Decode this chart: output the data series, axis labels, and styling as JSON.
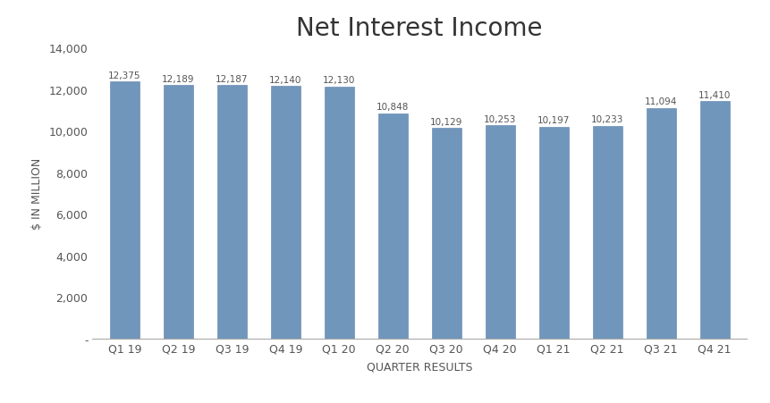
{
  "title": "Net Interest Income",
  "xlabel": "QUARTER RESULTS",
  "ylabel": "$ IN MILLION",
  "categories": [
    "Q1 19",
    "Q2 19",
    "Q3 19",
    "Q4 19",
    "Q1 20",
    "Q2 20",
    "Q3 20",
    "Q4 20",
    "Q1 21",
    "Q2 21",
    "Q3 21",
    "Q4 21"
  ],
  "values": [
    12375,
    12189,
    12187,
    12140,
    12130,
    10848,
    10129,
    10253,
    10197,
    10233,
    11094,
    11410
  ],
  "bar_color": "#7096bb",
  "bar_edge_color": "#5a7fa8",
  "ylim": [
    0,
    14000
  ],
  "yticks": [
    0,
    2000,
    4000,
    6000,
    8000,
    10000,
    12000,
    14000
  ],
  "ytick_labels": [
    "-",
    "2,000",
    "4,000",
    "6,000",
    "8,000",
    "10,000",
    "12,000",
    "14,000"
  ],
  "title_fontsize": 20,
  "axis_label_fontsize": 9,
  "tick_fontsize": 9,
  "annotation_fontsize": 7.5,
  "background_color": "#ffffff"
}
